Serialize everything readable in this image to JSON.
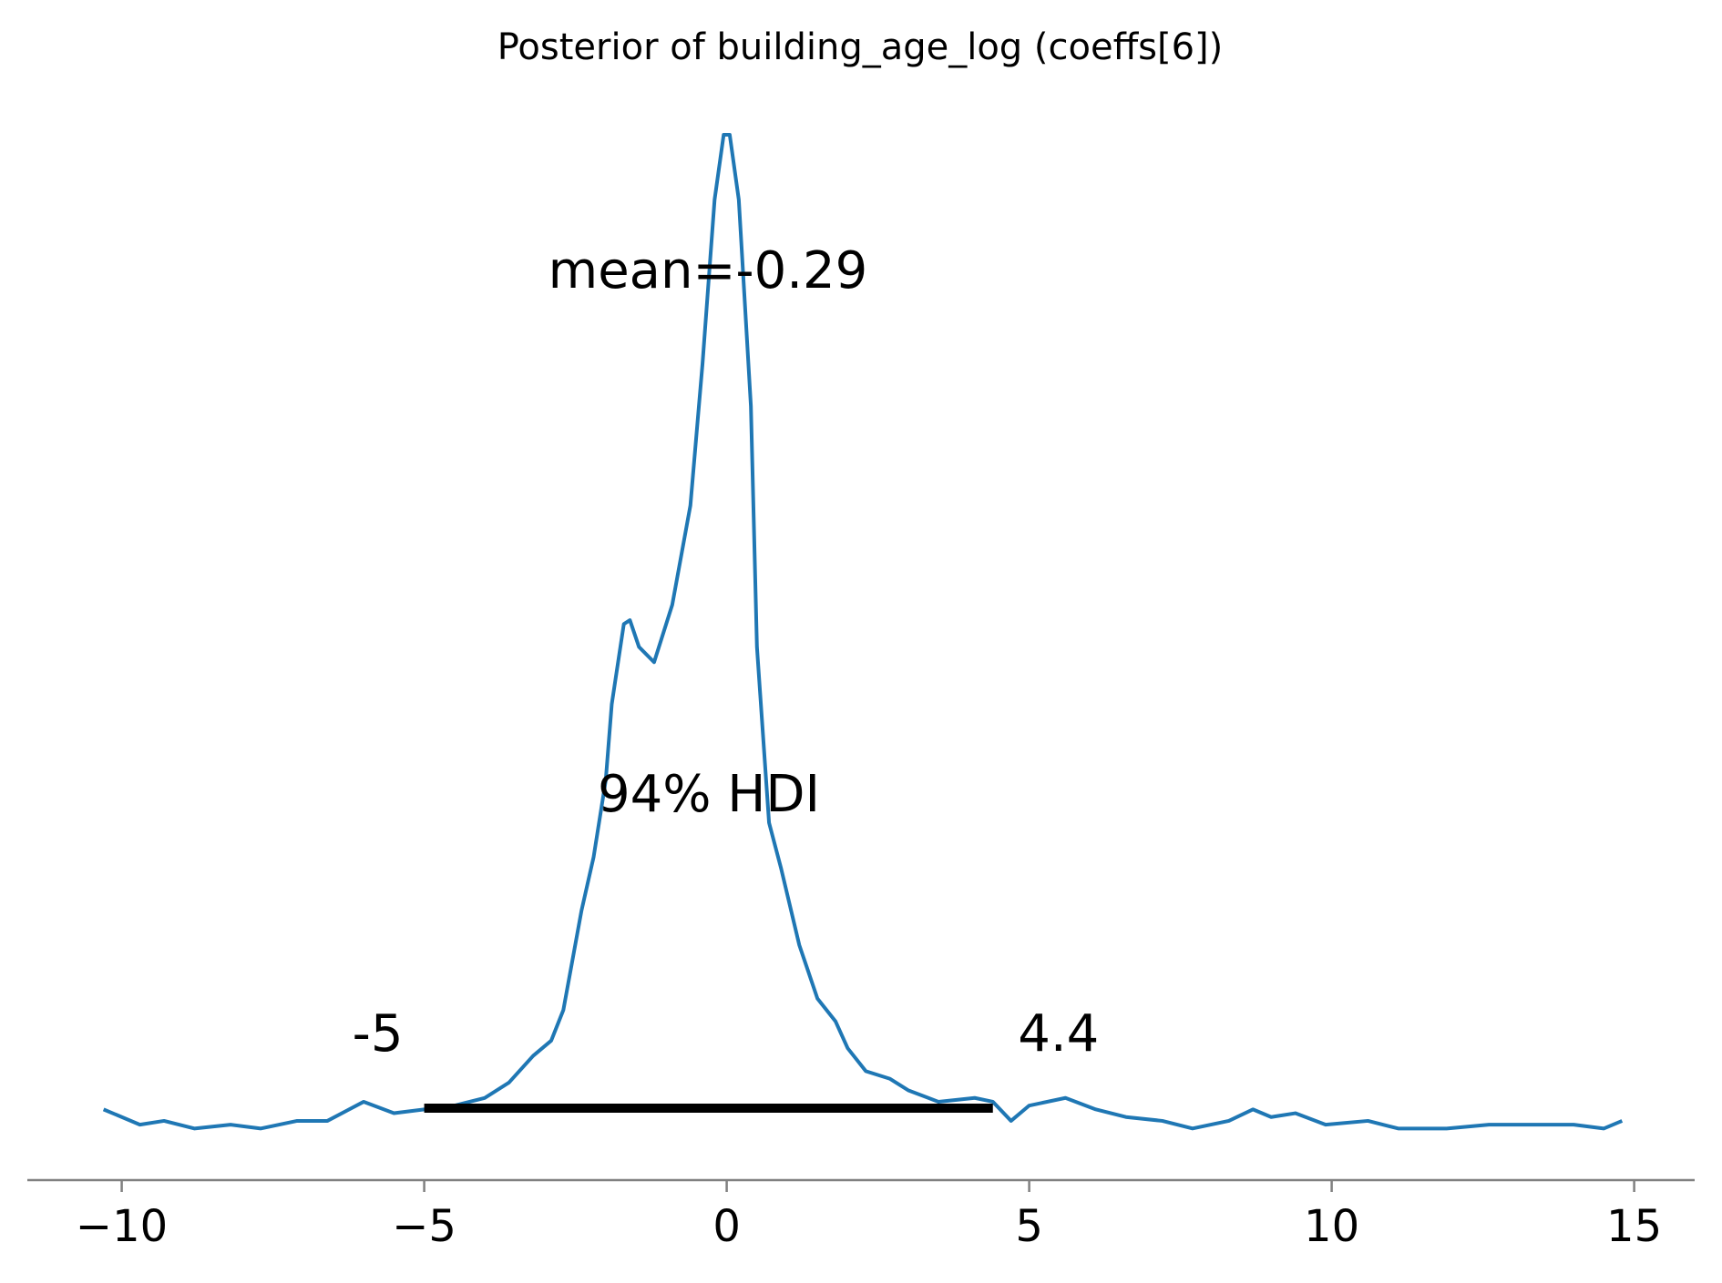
{
  "chart_data": {
    "type": "line",
    "title": "Posterior of building_age_log (coeffs[6])",
    "x": [
      -10.3,
      -9.7,
      -9.3,
      -8.8,
      -8.2,
      -7.7,
      -7.1,
      -6.6,
      -6.0,
      -5.5,
      -5.0,
      -4.5,
      -4.0,
      -3.6,
      -3.2,
      -2.9,
      -2.7,
      -2.4,
      -2.2,
      -2.0,
      -1.9,
      -1.7,
      -1.6,
      -1.45,
      -1.2,
      -0.9,
      -0.6,
      -0.4,
      -0.2,
      -0.05,
      0.05,
      0.2,
      0.4,
      0.5,
      0.7,
      0.9,
      1.2,
      1.5,
      1.8,
      2.0,
      2.3,
      2.7,
      3.0,
      3.5,
      4.1,
      4.4,
      4.7,
      5.0,
      5.6,
      6.1,
      6.6,
      7.2,
      7.7,
      8.3,
      8.7,
      9.0,
      9.4,
      9.9,
      10.6,
      11.1,
      11.9,
      12.6,
      13.2,
      14.0,
      14.5,
      14.8
    ],
    "series": [
      {
        "color": "#1f77b4",
        "values": [
          0.005,
          0.001,
          0.002,
          0.0,
          0.001,
          0.0,
          0.002,
          0.002,
          0.007,
          0.004,
          0.005,
          0.006,
          0.008,
          0.012,
          0.019,
          0.023,
          0.031,
          0.057,
          0.071,
          0.091,
          0.111,
          0.132,
          0.133,
          0.126,
          0.122,
          0.137,
          0.163,
          0.2,
          0.243,
          0.26,
          0.26,
          0.243,
          0.189,
          0.126,
          0.08,
          0.068,
          0.048,
          0.034,
          0.028,
          0.021,
          0.015,
          0.013,
          0.01,
          0.007,
          0.008,
          0.007,
          0.002,
          0.006,
          0.008,
          0.005,
          0.003,
          0.002,
          0.0,
          0.002,
          0.005,
          0.003,
          0.004,
          0.001,
          0.002,
          0.0,
          0.0,
          0.001,
          0.001,
          0.001,
          0.0,
          0.002
        ]
      }
    ],
    "xlim": [
      -11.56,
      16.0
    ],
    "ylim": [
      -0.0135,
      0.27
    ],
    "xticks": [
      {
        "value": -10,
        "label": "−10"
      },
      {
        "value": -5,
        "label": "−5"
      },
      0,
      5,
      10,
      15
    ],
    "mean_label": "mean=-0.29",
    "hdi_label": "94% HDI",
    "hdi": [
      -5,
      4.4
    ]
  }
}
